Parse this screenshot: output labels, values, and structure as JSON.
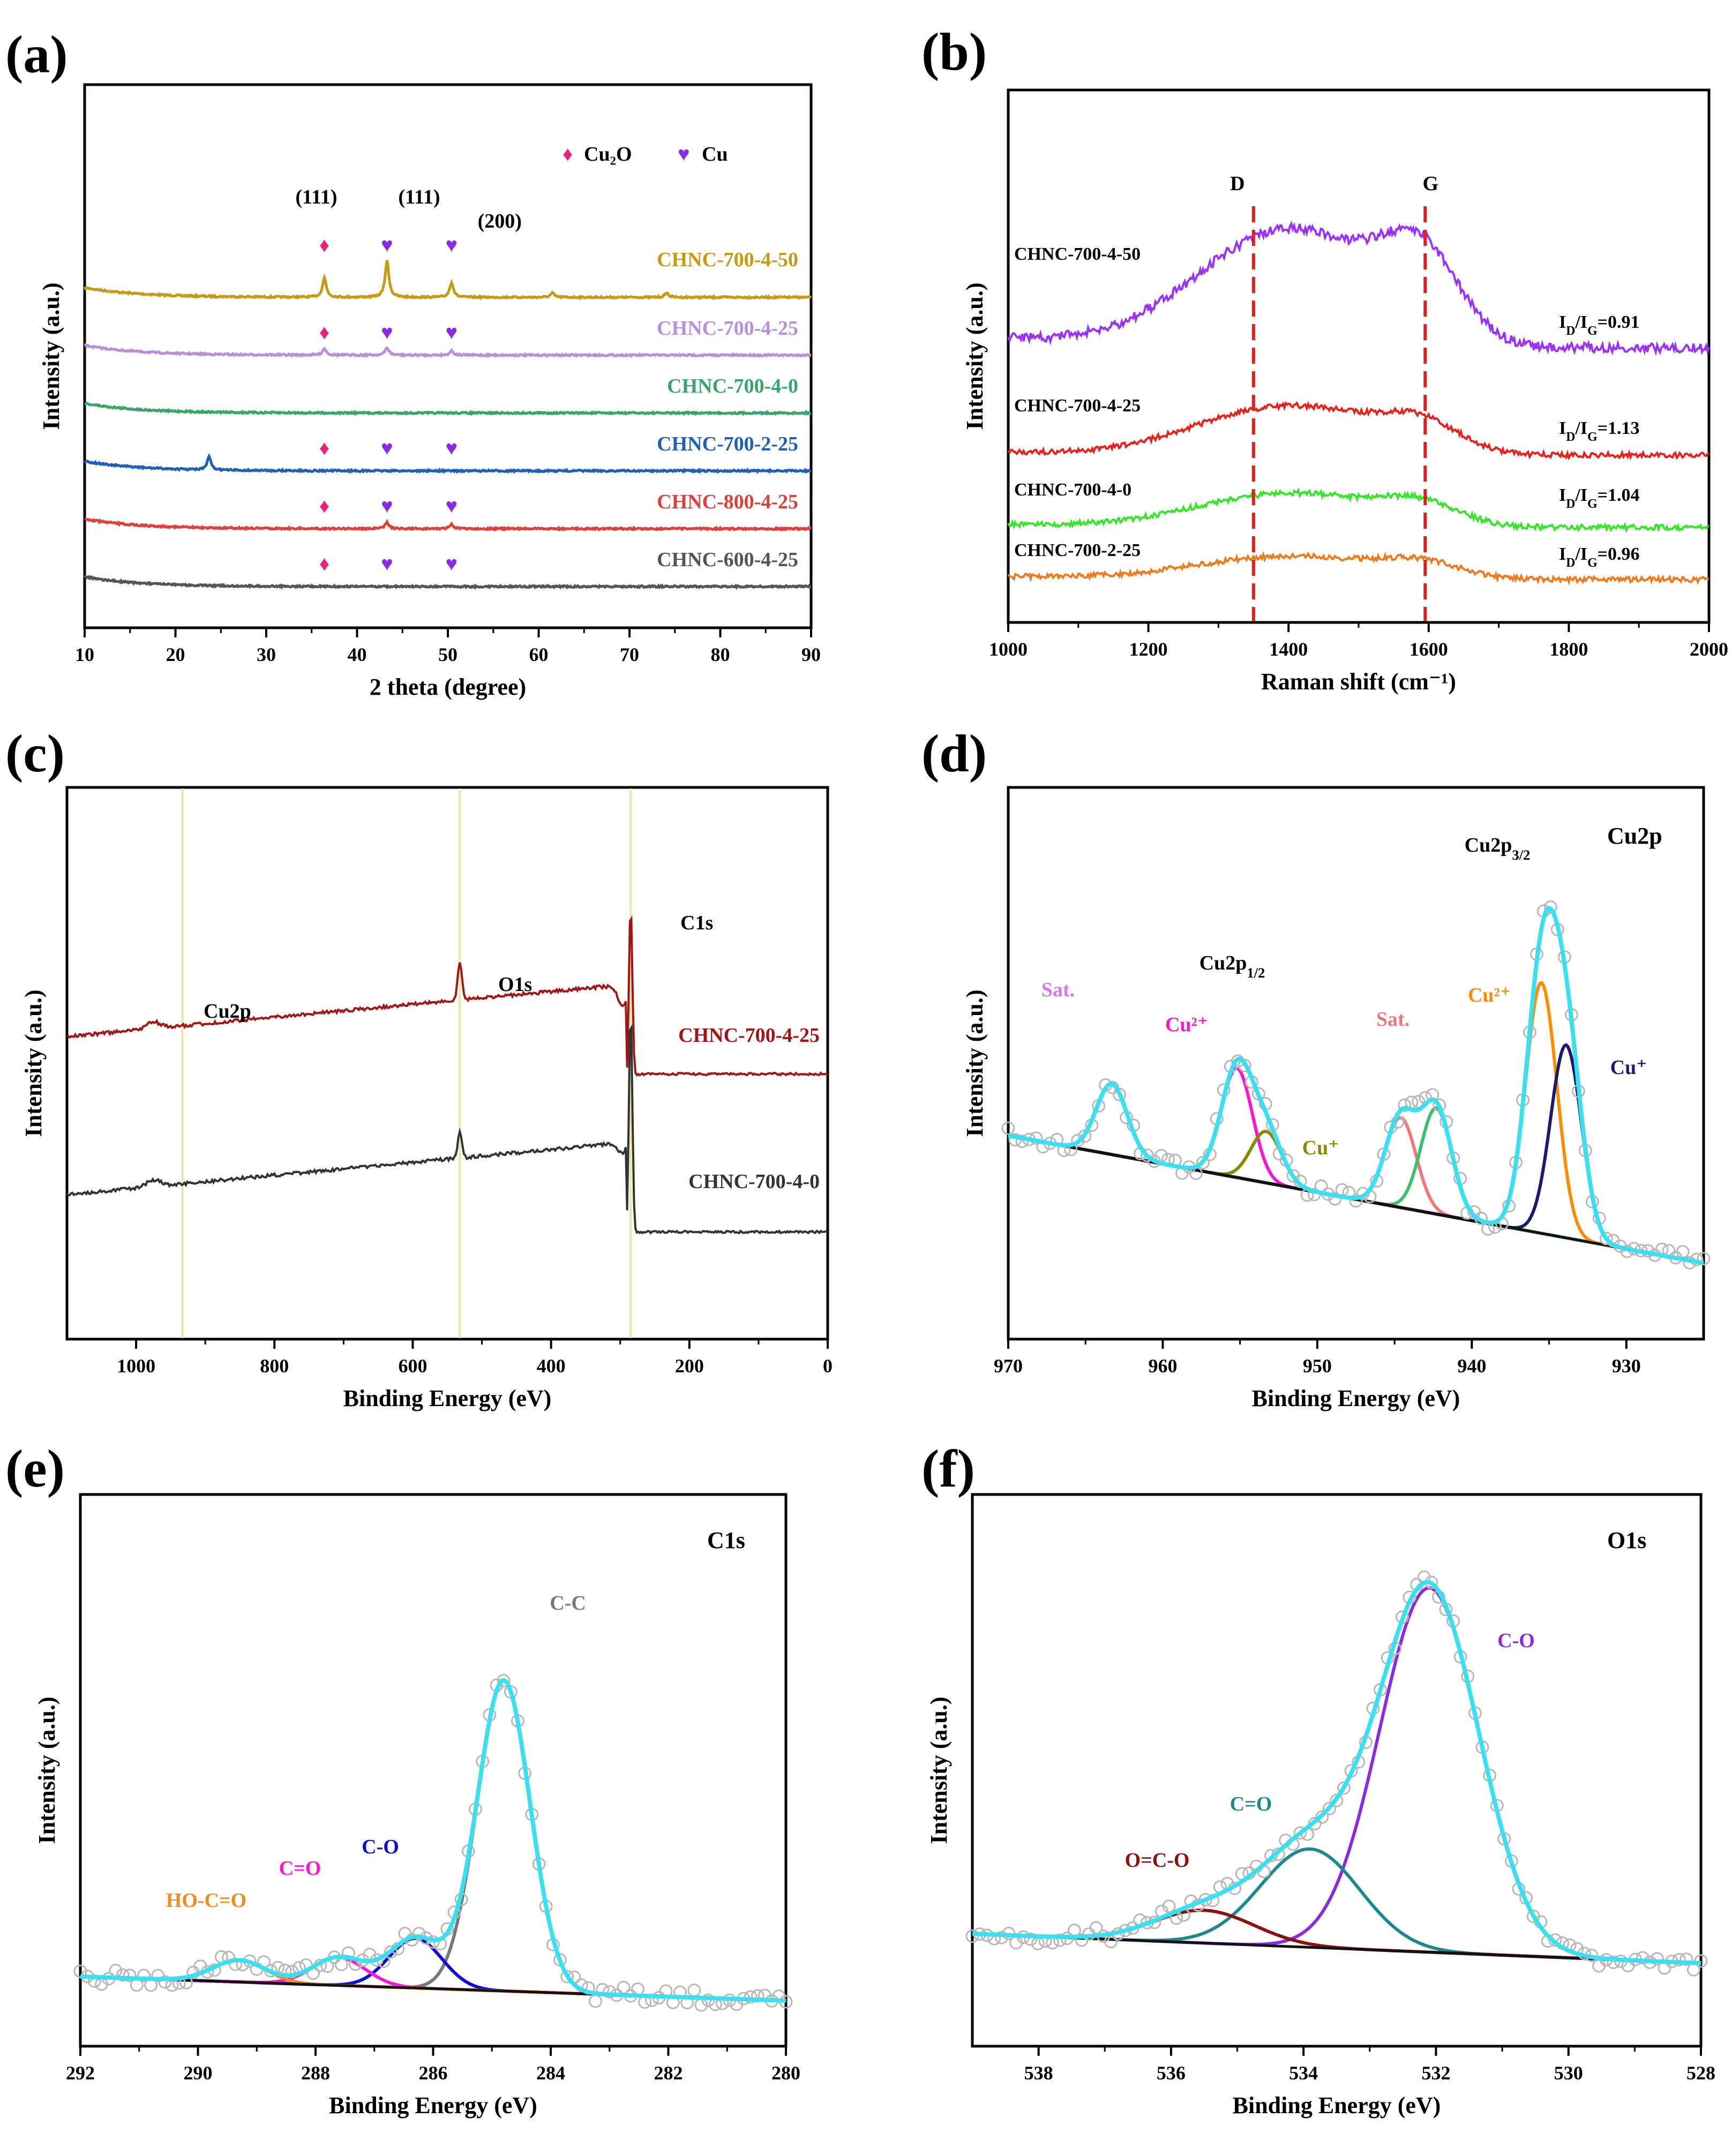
{
  "chart_data": [
    {
      "panel": "(a)",
      "type": "line",
      "xlabel": "2 theta (degree)",
      "ylabel": "Intensity (a.u.)",
      "xlim": [
        10,
        90
      ],
      "xticks": [
        10,
        20,
        30,
        40,
        50,
        60,
        70,
        80,
        90
      ],
      "legend": [
        {
          "label": "Cu₂O",
          "marker": "♦",
          "color": "#e8217a"
        },
        {
          "label": "Cu",
          "marker": "♥",
          "color": "#8a2be2"
        }
      ],
      "peak_labels": [
        {
          "text": "(111)",
          "x": 36.4
        },
        {
          "text": "(111)",
          "x": 43.3
        },
        {
          "text": "(200)",
          "x": 50.4
        }
      ],
      "peak_positions": {
        "Cu2O_111": 36.4,
        "Cu_111": 43.3,
        "Cu_200": 50.4
      },
      "series": [
        {
          "name": "CHNC-700-4-50",
          "color": "#c79a14",
          "offset": 6,
          "peaks": [
            [
              36.4,
              0.9
            ],
            [
              43.3,
              1.7
            ],
            [
              50.4,
              0.7
            ],
            [
              61.5,
              0.2
            ],
            [
              74.1,
              0.2
            ]
          ],
          "markers": []
        },
        {
          "name": "CHNC-700-4-25",
          "color": "#b98fdc",
          "offset": 4.8,
          "peaks": [
            [
              36.4,
              0.3
            ],
            [
              43.3,
              0.35
            ],
            [
              50.4,
              0.2
            ]
          ],
          "markers": [
            "Cu2O",
            "Cu",
            "Cu"
          ]
        },
        {
          "name": "CHNC-700-4-0",
          "color": "#3aa56b",
          "offset": 3.6,
          "peaks": [],
          "markers": []
        },
        {
          "name": "CHNC-700-2-25",
          "color": "#1f5fb5",
          "offset": 2.4,
          "peaks": [
            [
              23.7,
              0.6
            ]
          ],
          "markers": [
            "Cu2O",
            "Cu",
            "Cu"
          ]
        },
        {
          "name": "CHNC-800-4-25",
          "color": "#e0403a",
          "offset": 1.2,
          "peaks": [
            [
              43.3,
              0.3
            ],
            [
              50.4,
              0.2
            ]
          ],
          "markers": [
            "Cu2O",
            "Cu",
            "Cu"
          ]
        },
        {
          "name": "CHNC-600-4-25",
          "color": "#555555",
          "offset": 0,
          "peaks": [],
          "markers": [
            "Cu2O",
            "Cu",
            "Cu"
          ]
        }
      ]
    },
    {
      "panel": "(b)",
      "type": "line",
      "xlabel": "Raman shift (cm⁻¹)",
      "ylabel": "Intensity (a.u.)",
      "xlim": [
        1000,
        2000
      ],
      "xticks": [
        1000,
        1200,
        1400,
        1600,
        1800,
        2000
      ],
      "band_lines": [
        {
          "label": "D",
          "x": 1350
        },
        {
          "label": "G",
          "x": 1595
        }
      ],
      "series": [
        {
          "name": "CHNC-700-4-50",
          "color": "#9b30ff",
          "ratio": "I_D/I_G=0.91",
          "ratio_value": 0.91,
          "amp": 3.1
        },
        {
          "name": "CHNC-700-4-25",
          "color": "#e8211d",
          "ratio": "I_D/I_G=1.13",
          "ratio_value": 1.13,
          "amp": 1.3
        },
        {
          "name": "CHNC-700-4-0",
          "color": "#37e52a",
          "ratio": "I_D/I_G=1.04",
          "ratio_value": 1.04,
          "amp": 0.9
        },
        {
          "name": "CHNC-700-2-25",
          "color": "#f07a1e",
          "ratio": "I_D/I_G=0.96",
          "ratio_value": 0.96,
          "amp": 0.6
        }
      ]
    },
    {
      "panel": "(c)",
      "type": "line",
      "xlabel": "Binding Energy (eV)",
      "ylabel": "Intensity (a.u.)",
      "xlim": [
        1100,
        0
      ],
      "xticks": [
        1000,
        800,
        600,
        400,
        200,
        0
      ],
      "guide_lines": [
        {
          "x": 933
        },
        {
          "x": 532
        },
        {
          "x": 285
        }
      ],
      "peak_labels": [
        "Cu2p",
        "O1s",
        "C1s"
      ],
      "series": [
        {
          "name": "CHNC-700-4-25",
          "color": "#a31515"
        },
        {
          "name": "CHNC-700-4-0",
          "color": "#333333"
        }
      ]
    },
    {
      "panel": "(d)",
      "type": "line",
      "title": "Cu2p",
      "xlabel": "Binding Energy (eV)",
      "ylabel": "Intensity (a.u.)",
      "xlim": [
        970,
        925
      ],
      "xticks": [
        970,
        960,
        950,
        940,
        930
      ],
      "components": [
        {
          "name": "Sat.",
          "center": 963.3,
          "amp": 2.2,
          "color": "#d67be0"
        },
        {
          "name": "Cu²⁺",
          "center": 955.2,
          "amp": 3.4,
          "color": "#ff14d0"
        },
        {
          "name": "Cu⁺",
          "center": 953.3,
          "amp": 1.6,
          "color": "#8a8a00"
        },
        {
          "name": "Sat.",
          "center": 944.6,
          "amp": 2.8,
          "color": "#f07878"
        },
        {
          "name": "Sat.",
          "center": 942.3,
          "amp": 3.3,
          "color": "#3cbf6a"
        },
        {
          "name": "Cu²⁺",
          "center": 935.5,
          "amp": 7.8,
          "color": "#ff8c00"
        },
        {
          "name": "Cu⁺",
          "center": 933.9,
          "amp": 6.0,
          "color": "#1a1a6e"
        }
      ],
      "labels": [
        "Cu2p₃/₂",
        "Cu2p₁/₂",
        "Sat.",
        "Sat.",
        "Cu²⁺",
        "Cu²⁺",
        "Cu⁺",
        "Cu⁺"
      ]
    },
    {
      "panel": "(e)",
      "type": "line",
      "title": "C1s",
      "xlabel": "Binding Energy (eV)",
      "ylabel": "Intensity (a.u.)",
      "xlim": [
        292,
        280
      ],
      "xticks": [
        292,
        290,
        288,
        286,
        284,
        282,
        280
      ],
      "components": [
        {
          "name": "C-C",
          "center": 284.8,
          "amp": 10.0,
          "color": "#777777"
        },
        {
          "name": "C-O",
          "center": 286.3,
          "amp": 1.6,
          "color": "#0a0adc"
        },
        {
          "name": "C=O",
          "center": 287.6,
          "amp": 0.9,
          "color": "#ff14d0"
        },
        {
          "name": "HO-C=O",
          "center": 289.3,
          "amp": 0.7,
          "color": "#f08c1e"
        }
      ]
    },
    {
      "panel": "(f)",
      "type": "line",
      "title": "O1s",
      "xlabel": "Binding Energy (eV)",
      "ylabel": "Intensity (a.u.)",
      "xlim": [
        539,
        528
      ],
      "xticks": [
        538,
        536,
        534,
        532,
        530,
        528
      ],
      "components": [
        {
          "name": "C-O",
          "center": 532.1,
          "amp": 10.0,
          "color": "#8a2be2"
        },
        {
          "name": "C=O",
          "center": 533.9,
          "amp": 2.7,
          "color": "#1a8a8a"
        },
        {
          "name": "O=C-O",
          "center": 535.5,
          "amp": 0.9,
          "color": "#8b1010"
        }
      ]
    }
  ]
}
